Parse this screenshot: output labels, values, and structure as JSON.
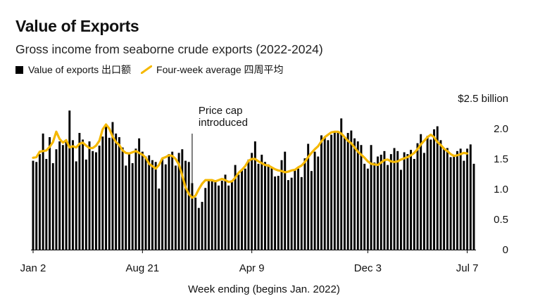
{
  "chart_data": {
    "type": "bar",
    "title": "Value of Exports",
    "subtitle": "Gross income from seaborne crude exports (2022-2024)",
    "legend": [
      {
        "name": "Value of exports 出口额",
        "kind": "bar",
        "color": "#000000"
      },
      {
        "name": "Four-week average 四周平均",
        "kind": "line",
        "color": "#f5b800"
      }
    ],
    "xlabel": "Week ending (begins Jan. 2022)",
    "ylabel": "",
    "ylim": [
      0,
      2.5
    ],
    "yticks": [
      {
        "value": 2.5,
        "label": "$2.5 billion"
      },
      {
        "value": 2.0,
        "label": "2.0"
      },
      {
        "value": 1.5,
        "label": "1.5"
      },
      {
        "value": 1.0,
        "label": "1.0"
      },
      {
        "value": 0.5,
        "label": "0.5"
      },
      {
        "value": 0,
        "label": "0"
      }
    ],
    "xticks": [
      {
        "index": 0,
        "label": "Jan 2"
      },
      {
        "index": 33,
        "label": "Aug 21"
      },
      {
        "index": 66,
        "label": "Apr 9"
      },
      {
        "index": 101,
        "label": "Dec 3"
      },
      {
        "index": 131,
        "label": "Jul 7"
      }
    ],
    "annotations": [
      {
        "index": 48,
        "lines": [
          "Price cap",
          "introduced"
        ]
      }
    ],
    "series": [
      {
        "name": "Value of exports 出口额",
        "values": [
          1.47,
          1.45,
          1.58,
          1.92,
          1.5,
          1.86,
          1.43,
          1.66,
          1.79,
          1.73,
          1.82,
          2.3,
          1.81,
          1.46,
          1.93,
          1.82,
          1.49,
          1.79,
          1.63,
          1.61,
          1.72,
          1.87,
          2.05,
          1.85,
          2.11,
          1.92,
          1.86,
          1.69,
          1.39,
          1.6,
          1.43,
          1.67,
          1.84,
          1.62,
          1.54,
          1.56,
          1.48,
          1.45,
          1.01,
          1.51,
          1.41,
          1.58,
          1.62,
          1.39,
          1.6,
          1.66,
          1.47,
          1.45,
          1.1,
          0.86,
          0.69,
          0.79,
          1.02,
          1.15,
          1.13,
          1.15,
          1.06,
          1.14,
          1.24,
          1.06,
          1.12,
          1.4,
          1.24,
          1.31,
          1.34,
          1.49,
          1.6,
          1.79,
          1.42,
          1.57,
          1.45,
          1.41,
          1.37,
          1.21,
          1.22,
          1.48,
          1.62,
          1.15,
          1.19,
          1.31,
          1.34,
          1.2,
          1.51,
          1.75,
          1.3,
          1.62,
          1.54,
          1.89,
          1.86,
          1.81,
          1.9,
          1.94,
          1.93,
          2.17,
          1.86,
          1.93,
          1.97,
          1.84,
          1.79,
          1.73,
          1.42,
          1.34,
          1.73,
          1.44,
          1.54,
          1.57,
          1.63,
          1.4,
          1.58,
          1.68,
          1.63,
          1.32,
          1.61,
          1.58,
          1.65,
          1.5,
          1.76,
          1.91,
          1.6,
          1.88,
          1.82,
          1.99,
          2.04,
          1.81,
          1.67,
          1.68,
          1.53,
          1.54,
          1.63,
          1.67,
          1.47,
          1.67,
          1.74,
          1.42
        ],
        "color": "#000000"
      },
      {
        "name": "Four-week average 四周平均",
        "values": [
          1.52,
          1.53,
          1.62,
          1.63,
          1.64,
          1.7,
          1.78,
          1.95,
          1.83,
          1.77,
          1.81,
          1.69,
          1.71,
          1.69,
          1.75,
          1.77,
          1.72,
          1.68,
          1.68,
          1.72,
          1.8,
          1.99,
          2.07,
          2.0,
          1.87,
          1.78,
          1.73,
          1.64,
          1.6,
          1.59,
          1.61,
          1.63,
          1.6,
          1.57,
          1.52,
          1.42,
          1.38,
          1.34,
          1.4,
          1.51,
          1.53,
          1.56,
          1.55,
          1.5,
          1.41,
          1.23,
          1.03,
          0.92,
          0.86,
          0.89,
          1.0,
          1.09,
          1.15,
          1.15,
          1.15,
          1.13,
          1.15,
          1.17,
          1.15,
          1.12,
          1.13,
          1.19,
          1.27,
          1.32,
          1.38,
          1.47,
          1.5,
          1.5,
          1.46,
          1.43,
          1.4,
          1.39,
          1.36,
          1.33,
          1.31,
          1.3,
          1.28,
          1.29,
          1.31,
          1.32,
          1.36,
          1.39,
          1.45,
          1.53,
          1.6,
          1.66,
          1.71,
          1.79,
          1.86,
          1.9,
          1.94,
          1.95,
          1.95,
          1.92,
          1.86,
          1.8,
          1.76,
          1.69,
          1.62,
          1.57,
          1.52,
          1.46,
          1.42,
          1.41,
          1.4,
          1.44,
          1.48,
          1.49,
          1.46,
          1.45,
          1.46,
          1.49,
          1.51,
          1.53,
          1.56,
          1.6,
          1.66,
          1.74,
          1.8,
          1.86,
          1.9,
          1.86,
          1.78,
          1.73,
          1.67,
          1.63,
          1.58,
          1.55,
          1.56,
          1.58,
          1.6,
          1.59
        ],
        "color": "#f5b800"
      }
    ]
  }
}
